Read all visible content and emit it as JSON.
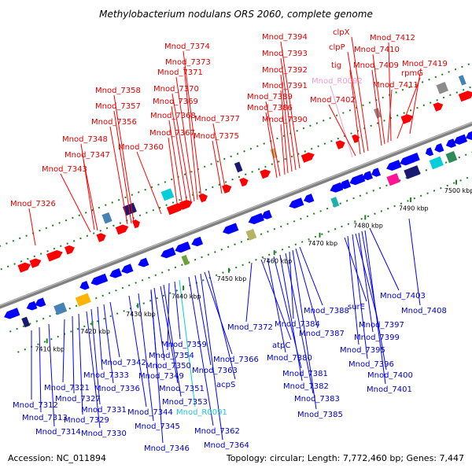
{
  "title": "Methylobacterium nodulans ORS 2060, complete genome",
  "footer": {
    "accession": "Accession: NC_011894",
    "topology": "Topology: circular; Length: 7,772,460 bp; Genes: 7,447"
  },
  "colors": {
    "forward": "#ff0000",
    "reverse": "#0000ff",
    "rna_cyan": "#00ced8",
    "rna_pink": "#f0a0d0",
    "backbone": "#808080",
    "ruler_dot": "#208020"
  },
  "ruler": [
    {
      "label": "7410 kbp"
    },
    {
      "label": "7420 kbp"
    },
    {
      "label": "7430 kbp"
    },
    {
      "label": "7440 kbp"
    },
    {
      "label": "7450 kbp"
    },
    {
      "label": "7460 kbp"
    },
    {
      "label": "7470 kbp"
    },
    {
      "label": "7480 kbp"
    },
    {
      "label": "7490 kbp"
    },
    {
      "label": "7500 kbp"
    }
  ],
  "top_labels": [
    {
      "text": "Mnod_7326",
      "color": "red"
    },
    {
      "text": "Mnod_7343",
      "color": "red"
    },
    {
      "text": "Mnod_7347",
      "color": "red"
    },
    {
      "text": "Mnod_7348",
      "color": "red"
    },
    {
      "text": "Mnod_7356",
      "color": "red"
    },
    {
      "text": "Mnod_7357",
      "color": "red"
    },
    {
      "text": "Mnod_7358",
      "color": "red"
    },
    {
      "text": "Mnod_7360",
      "color": "red"
    },
    {
      "text": "Mnod_7367",
      "color": "red"
    },
    {
      "text": "Mnod_7368",
      "color": "red"
    },
    {
      "text": "Mnod_7369",
      "color": "red"
    },
    {
      "text": "Mnod_7370",
      "color": "red"
    },
    {
      "text": "Mnod_7371",
      "color": "red"
    },
    {
      "text": "Mnod_7373",
      "color": "red"
    },
    {
      "text": "Mnod_7374",
      "color": "red"
    },
    {
      "text": "Mnod_7375",
      "color": "red"
    },
    {
      "text": "Mnod_7377",
      "color": "red"
    },
    {
      "text": "Mnod_7386",
      "color": "red"
    },
    {
      "text": "Mnod_7389",
      "color": "red"
    },
    {
      "text": "Mnod_7390",
      "color": "red"
    },
    {
      "text": "Mnod_7391",
      "color": "red"
    },
    {
      "text": "Mnod_7392",
      "color": "red"
    },
    {
      "text": "Mnod_7393",
      "color": "red"
    },
    {
      "text": "Mnod_7394",
      "color": "red"
    },
    {
      "text": "Mnod_R0092",
      "color": "pink"
    },
    {
      "text": "Mnod_7402",
      "color": "red"
    },
    {
      "text": "tig",
      "color": "red"
    },
    {
      "text": "clpP",
      "color": "red"
    },
    {
      "text": "clpX",
      "color": "red"
    },
    {
      "text": "Mnod_7409",
      "color": "red"
    },
    {
      "text": "Mnod_7410",
      "color": "red"
    },
    {
      "text": "Mnod_7411",
      "color": "red"
    },
    {
      "text": "Mnod_7412",
      "color": "red"
    },
    {
      "text": "rpmG",
      "color": "red"
    },
    {
      "text": "Mnod_7419",
      "color": "red"
    }
  ],
  "bottom_labels": [
    {
      "text": "Mnod_7312",
      "color": "blue"
    },
    {
      "text": "Mnod_7313",
      "color": "blue"
    },
    {
      "text": "Mnod_7314",
      "color": "blue"
    },
    {
      "text": "Mnod_7321",
      "color": "blue"
    },
    {
      "text": "Mnod_7327",
      "color": "blue"
    },
    {
      "text": "Mnod_7329",
      "color": "blue"
    },
    {
      "text": "Mnod_7330",
      "color": "blue"
    },
    {
      "text": "Mnod_7331",
      "color": "blue"
    },
    {
      "text": "Mnod_7333",
      "color": "blue"
    },
    {
      "text": "Mnod_7336",
      "color": "blue"
    },
    {
      "text": "Mnod_7342",
      "color": "blue"
    },
    {
      "text": "Mnod_7344",
      "color": "blue"
    },
    {
      "text": "Mnod_7345",
      "color": "blue"
    },
    {
      "text": "Mnod_7346",
      "color": "blue"
    },
    {
      "text": "Mnod_7349",
      "color": "blue"
    },
    {
      "text": "Mnod_7350",
      "color": "blue"
    },
    {
      "text": "Mnod_7351",
      "color": "blue"
    },
    {
      "text": "Mnod_7353",
      "color": "blue"
    },
    {
      "text": "Mnod_7354",
      "color": "blue"
    },
    {
      "text": "Mnod_7359",
      "color": "blue"
    },
    {
      "text": "Mnod_R0091",
      "color": "cyan"
    },
    {
      "text": "Mnod_7362",
      "color": "blue"
    },
    {
      "text": "Mnod_7363",
      "color": "blue"
    },
    {
      "text": "Mnod_7364",
      "color": "blue"
    },
    {
      "text": "Mnod_7366",
      "color": "blue"
    },
    {
      "text": "acpS",
      "color": "blue"
    },
    {
      "text": "Mnod_7372",
      "color": "blue"
    },
    {
      "text": "atpC",
      "color": "blue"
    },
    {
      "text": "Mnod_7380",
      "color": "blue"
    },
    {
      "text": "Mnod_7381",
      "color": "blue"
    },
    {
      "text": "Mnod_7382",
      "color": "blue"
    },
    {
      "text": "Mnod_7383",
      "color": "blue"
    },
    {
      "text": "Mnod_7384",
      "color": "blue"
    },
    {
      "text": "Mnod_7385",
      "color": "blue"
    },
    {
      "text": "Mnod_7387",
      "color": "blue"
    },
    {
      "text": "Mnod_7388",
      "color": "blue"
    },
    {
      "text": "surE",
      "color": "blue"
    },
    {
      "text": "Mnod_7395",
      "color": "blue"
    },
    {
      "text": "Mnod_7396",
      "color": "blue"
    },
    {
      "text": "Mnod_7397",
      "color": "blue"
    },
    {
      "text": "Mnod_7399",
      "color": "blue"
    },
    {
      "text": "Mnod_7400",
      "color": "blue"
    },
    {
      "text": "Mnod_7401",
      "color": "blue"
    },
    {
      "text": "Mnod_7403",
      "color": "blue"
    },
    {
      "text": "Mnod_7408",
      "color": "blue"
    }
  ]
}
